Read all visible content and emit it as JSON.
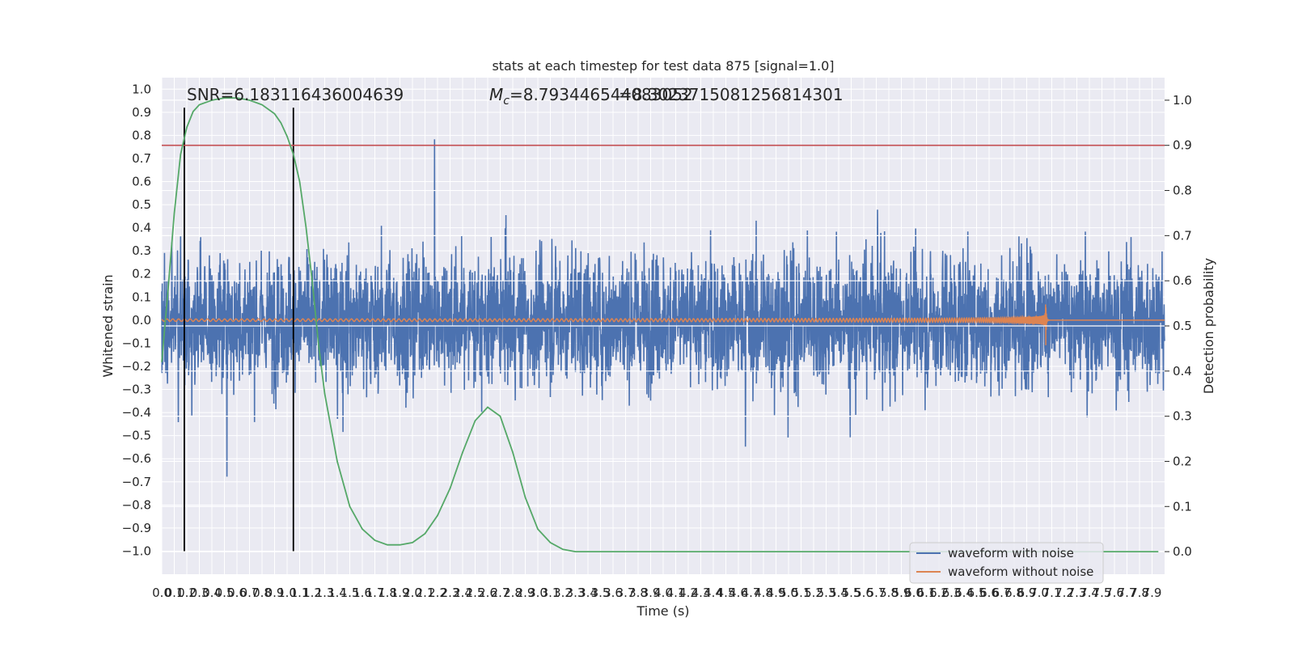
{
  "chart_data": {
    "type": "line",
    "title": "stats at each timestep for test data 875 [signal=1.0]",
    "xlabel": "Time (s)",
    "ylabel_left": "Whitened strain",
    "ylabel_right": "Detection probability",
    "xlim": [
      0.0,
      8.0
    ],
    "ylim_left": [
      -1.1,
      1.05
    ],
    "ylim_right": [
      -0.05,
      1.05
    ],
    "x_ticks": [
      "0.0",
      "0.1",
      "0.2",
      "0.3",
      "0.4",
      "0.5",
      "0.6",
      "0.7",
      "0.8",
      "0.9",
      "1.0",
      "1.1",
      "1.2",
      "1.3",
      "1.4",
      "1.5",
      "1.6",
      "1.7",
      "1.8",
      "1.9",
      "2.0",
      "2.1",
      "2.2",
      "2.3",
      "2.4",
      "2.5",
      "2.6",
      "2.7",
      "2.8",
      "2.9",
      "3.0",
      "3.1",
      "3.2",
      "3.3",
      "3.4",
      "3.5",
      "3.6",
      "3.7",
      "3.8",
      "3.9",
      "4.0",
      "4.1",
      "4.2",
      "4.3",
      "4.4",
      "4.5",
      "4.6",
      "4.7",
      "4.8",
      "4.9",
      "5.0",
      "5.1",
      "5.2",
      "5.3",
      "5.4",
      "5.5",
      "5.6",
      "5.7",
      "5.8",
      "5.9",
      "6.0",
      "6.1",
      "6.2",
      "6.3",
      "6.4",
      "6.5",
      "6.6",
      "6.7",
      "6.8",
      "6.9",
      "7.0",
      "7.1",
      "7.2",
      "7.3",
      "7.4",
      "7.5",
      "7.6",
      "7.7",
      "7.8",
      "7.9"
    ],
    "y_ticks_left": [
      "−1.0",
      "−0.9",
      "−0.8",
      "−0.7",
      "−0.6",
      "−0.5",
      "−0.4",
      "−0.3",
      "−0.2",
      "−0.1",
      "0.0",
      "0.1",
      "0.2",
      "0.3",
      "0.4",
      "0.5",
      "0.6",
      "0.7",
      "0.8",
      "0.9",
      "1.0"
    ],
    "y_ticks_right": [
      "0.0",
      "0.1",
      "0.2",
      "0.3",
      "0.4",
      "0.5",
      "0.6",
      "0.7",
      "0.8",
      "0.9",
      "1.0"
    ],
    "annotations": {
      "snr": "SNR=6.183116436004639",
      "mc_prefix": "M",
      "mc_sub": "c",
      "mc_value_1": "=8.793446544083052",
      "mc_value_2": "=8.3023715081256814301"
    },
    "threshold": 0.9,
    "vlines_x": [
      0.18,
      1.05
    ],
    "waveform_merger_time": 7.05,
    "legend_position": "lower-right",
    "colors": {
      "noise": "#4c72b0",
      "clean": "#dd8452",
      "prob": "#55a868",
      "threshold": "#c44e52",
      "vline": "#000000",
      "background": "#eaeaf2",
      "grid": "#ffffff"
    },
    "series": [
      {
        "name": "waveform with noise",
        "color": "#4c72b0",
        "style": "dense noise, |amplitude| up to ~0.85"
      },
      {
        "name": "waveform without noise",
        "color": "#dd8452",
        "style": "chirp, peak ~0.17 at t=7.05"
      }
    ],
    "probability_series": {
      "x": [
        0.0,
        0.05,
        0.1,
        0.15,
        0.2,
        0.25,
        0.3,
        0.4,
        0.5,
        0.6,
        0.7,
        0.8,
        0.9,
        0.95,
        1.0,
        1.05,
        1.1,
        1.15,
        1.2,
        1.25,
        1.3,
        1.4,
        1.5,
        1.6,
        1.7,
        1.8,
        1.9,
        2.0,
        2.1,
        2.2,
        2.3,
        2.4,
        2.5,
        2.6,
        2.7,
        2.8,
        2.9,
        3.0,
        3.1,
        3.2,
        3.3,
        3.4,
        4.0,
        5.0,
        6.0,
        7.0,
        7.95
      ],
      "y": [
        0.42,
        0.58,
        0.75,
        0.88,
        0.94,
        0.975,
        0.99,
        1.0,
        1.005,
        1.005,
        1.0,
        0.99,
        0.97,
        0.95,
        0.92,
        0.88,
        0.82,
        0.72,
        0.6,
        0.46,
        0.35,
        0.2,
        0.1,
        0.05,
        0.025,
        0.015,
        0.015,
        0.02,
        0.04,
        0.08,
        0.14,
        0.22,
        0.29,
        0.32,
        0.3,
        0.22,
        0.12,
        0.05,
        0.02,
        0.005,
        0.0,
        0.0,
        0.0,
        0.0,
        0.0,
        0.0,
        0.0
      ]
    }
  }
}
